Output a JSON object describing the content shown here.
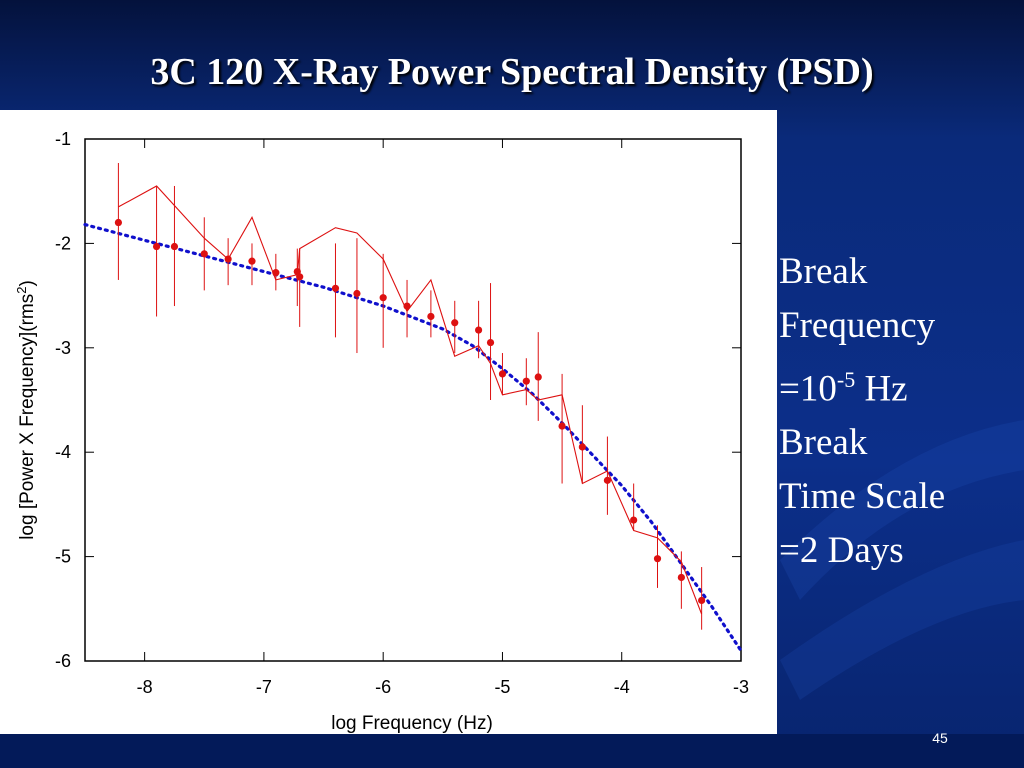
{
  "slide": {
    "title": "3C 120 X-Ray Power Spectral Density (PSD)",
    "number": "45",
    "side_text": {
      "line1": "Break",
      "line2": "Frequency",
      "line3_base": "=10",
      "line3_exp": "-5",
      "line3_unit": " Hz",
      "line4": "Break",
      "line5": "Time Scale",
      "line6": "=2 Days"
    }
  },
  "colors": {
    "background": "#0c2f8a",
    "title": "#ffffff",
    "data": "#dd1111",
    "model": "#1010cc",
    "axis": "#000000"
  },
  "chart_data": {
    "type": "scatter",
    "xlabel": "log Frequency (Hz)",
    "ylabel_main": "log [Power X Frequency](rms",
    "ylabel_sup": "2",
    "ylabel_end": ")",
    "xlim": [
      -8.5,
      -3
    ],
    "ylim": [
      -6,
      -1
    ],
    "xticks": [
      -8,
      -7,
      -6,
      -5,
      -4,
      -3
    ],
    "yticks": [
      -1,
      -2,
      -3,
      -4,
      -5,
      -6
    ],
    "grid": false,
    "series": [
      {
        "kind": "points-with-error-bars",
        "points": [
          {
            "x": -8.22,
            "y": -1.8,
            "lo": -2.35,
            "hi": -1.23
          },
          {
            "x": -7.9,
            "y": -2.03,
            "lo": -2.7,
            "hi": -1.45
          },
          {
            "x": -7.75,
            "y": -2.03,
            "lo": -2.6,
            "hi": -1.45
          },
          {
            "x": -7.5,
            "y": -2.1,
            "lo": -2.45,
            "hi": -1.75
          },
          {
            "x": -7.3,
            "y": -2.15,
            "lo": -2.4,
            "hi": -1.95
          },
          {
            "x": -7.1,
            "y": -2.17,
            "lo": -2.4,
            "hi": -2.0
          },
          {
            "x": -6.9,
            "y": -2.28,
            "lo": -2.45,
            "hi": -2.1
          },
          {
            "x": -6.72,
            "y": -2.27,
            "lo": -2.6,
            "hi": -2.05
          },
          {
            "x": -6.7,
            "y": -2.32,
            "lo": -2.8,
            "hi": -2.05
          },
          {
            "x": -6.4,
            "y": -2.43,
            "lo": -2.9,
            "hi": -2.0
          },
          {
            "x": -6.22,
            "y": -2.48,
            "lo": -3.05,
            "hi": -1.95
          },
          {
            "x": -6.0,
            "y": -2.52,
            "lo": -3.0,
            "hi": -2.1
          },
          {
            "x": -5.8,
            "y": -2.6,
            "lo": -2.9,
            "hi": -2.35
          },
          {
            "x": -5.6,
            "y": -2.7,
            "lo": -2.9,
            "hi": -2.45
          },
          {
            "x": -5.4,
            "y": -2.76,
            "lo": -3.05,
            "hi": -2.55
          },
          {
            "x": -5.2,
            "y": -2.83,
            "lo": -3.1,
            "hi": -2.55
          },
          {
            "x": -5.1,
            "y": -2.95,
            "lo": -3.5,
            "hi": -2.38
          },
          {
            "x": -5.0,
            "y": -3.25,
            "lo": -3.45,
            "hi": -3.05
          },
          {
            "x": -4.8,
            "y": -3.32,
            "lo": -3.55,
            "hi": -3.1
          },
          {
            "x": -4.7,
            "y": -3.28,
            "lo": -3.7,
            "hi": -2.85
          },
          {
            "x": -4.5,
            "y": -3.75,
            "lo": -4.3,
            "hi": -3.25
          },
          {
            "x": -4.33,
            "y": -3.95,
            "lo": -4.3,
            "hi": -3.55
          },
          {
            "x": -4.12,
            "y": -4.27,
            "lo": -4.6,
            "hi": -3.85
          },
          {
            "x": -3.9,
            "y": -4.65,
            "lo": -4.75,
            "hi": -4.3
          },
          {
            "x": -3.7,
            "y": -5.02,
            "lo": -5.3,
            "hi": -4.7
          },
          {
            "x": -3.5,
            "y": -5.2,
            "lo": -5.5,
            "hi": -4.95
          },
          {
            "x": -3.33,
            "y": -5.42,
            "lo": -5.7,
            "hi": -5.1
          }
        ]
      },
      {
        "kind": "thin-line",
        "x": [
          -8.22,
          -7.9,
          -7.5,
          -7.3,
          -7.1,
          -6.9,
          -6.72,
          -6.7,
          -6.4,
          -6.22,
          -6.0,
          -5.8,
          -5.6,
          -5.4,
          -5.2,
          -5.1,
          -5.0,
          -4.8,
          -4.7,
          -4.5,
          -4.33,
          -4.12,
          -3.9,
          -3.7,
          -3.5,
          -3.33
        ],
        "y": [
          -1.65,
          -1.45,
          -1.95,
          -2.15,
          -1.75,
          -2.35,
          -2.3,
          -2.05,
          -1.85,
          -1.9,
          -2.15,
          -2.65,
          -2.35,
          -3.08,
          -2.98,
          -3.15,
          -3.45,
          -3.4,
          -3.5,
          -3.45,
          -4.3,
          -4.18,
          -4.75,
          -4.82,
          -5.05,
          -5.55
        ]
      },
      {
        "kind": "dotted-model",
        "x": [
          -8.5,
          -8.0,
          -7.5,
          -7.0,
          -6.5,
          -6.0,
          -5.5,
          -5.25,
          -5.0,
          -4.75,
          -4.5,
          -4.25,
          -4.0,
          -3.75,
          -3.5,
          -3.25,
          -3.0
        ],
        "y": [
          -1.82,
          -1.97,
          -2.12,
          -2.27,
          -2.42,
          -2.6,
          -2.82,
          -2.98,
          -3.2,
          -3.44,
          -3.72,
          -4.02,
          -4.32,
          -4.67,
          -5.07,
          -5.47,
          -5.9
        ]
      }
    ]
  }
}
